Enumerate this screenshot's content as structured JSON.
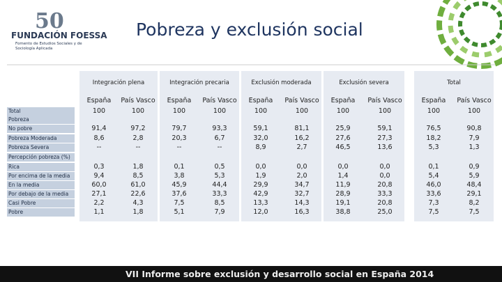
{
  "header": {
    "org": "FUNDACIÓN FOESSA",
    "org_sub": "Fomento de Estudios Sociales y de Sociología Aplicada",
    "title": "Pobreza y exclusión social"
  },
  "table": {
    "groups": [
      "Integración plena",
      "Integración precaria",
      "Exclusión moderada",
      "Exclusión severa",
      "Total"
    ],
    "columns": [
      "España",
      "País Vasco",
      "España",
      "País Vasco",
      "España",
      "País Vasco",
      "España",
      "País Vasco",
      "España",
      "País Vasco"
    ],
    "rows": [
      {
        "label": "Total",
        "cells": [
          "100",
          "100",
          "100",
          "100",
          "100",
          "100",
          "100",
          "100",
          "100",
          "100"
        ]
      },
      {
        "label": "Pobreza"
      },
      {
        "label": "No pobre",
        "cells": [
          "91,4",
          "97,2",
          "79,7",
          "93,3",
          "59,1",
          "81,1",
          "25,9",
          "59,1",
          "76,5",
          "90,8"
        ]
      },
      {
        "label": "Pobreza Moderada",
        "cells": [
          "8,6",
          "2,8",
          "20,3",
          "6,7",
          "32,0",
          "16,2",
          "27,6",
          "27,3",
          "18,2",
          "7,9"
        ]
      },
      {
        "label": "Pobreza Severa",
        "cells": [
          "--",
          "--",
          "--",
          "--",
          "8,9",
          "2,7",
          "46,5",
          "13,6",
          "5,3",
          "1,3"
        ]
      },
      {
        "label": "Percepción pobreza (%)"
      },
      {
        "label": "Rica",
        "cells": [
          "0,3",
          "1,8",
          "0,1",
          "0,5",
          "0,0",
          "0,0",
          "0,0",
          "0,0",
          "0,1",
          "0,9"
        ]
      },
      {
        "label": "Por encima de la media",
        "cells": [
          "9,4",
          "8,5",
          "3,8",
          "5,3",
          "1,9",
          "2,0",
          "1,4",
          "0,0",
          "5,4",
          "5,9"
        ]
      },
      {
        "label": "En la media",
        "cells": [
          "60,0",
          "61,0",
          "45,9",
          "44,4",
          "29,9",
          "34,7",
          "11,9",
          "20,8",
          "46,0",
          "48,4"
        ]
      },
      {
        "label": "Por debajo de la media",
        "cells": [
          "27,1",
          "22,6",
          "37,6",
          "33,3",
          "42,9",
          "32,7",
          "28,9",
          "33,3",
          "33,6",
          "29,1"
        ]
      },
      {
        "label": "Casi Pobre",
        "cells": [
          "2,2",
          "4,3",
          "7,5",
          "8,5",
          "13,3",
          "14,3",
          "19,1",
          "20,8",
          "7,3",
          "8,2"
        ]
      },
      {
        "label": "Pobre",
        "cells": [
          "1,1",
          "1,8",
          "5,1",
          "7,9",
          "12,0",
          "16,3",
          "38,8",
          "25,0",
          "7,5",
          "7,5"
        ]
      }
    ]
  },
  "footer": "VII Informe sobre exclusión y desarrollo social en España 2014"
}
